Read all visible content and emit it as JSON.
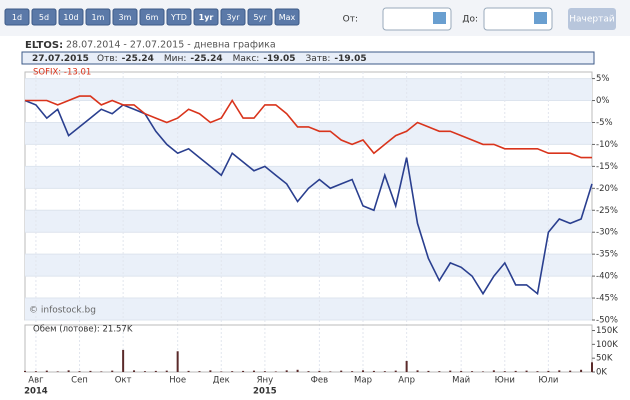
{
  "toolbar": {
    "buttons": [
      "1d",
      "5d",
      "10d",
      "1m",
      "3m",
      "6m",
      "YTD",
      "1yr",
      "3yr",
      "5yr",
      "Max"
    ],
    "active": "1yr",
    "from_label": "От:",
    "to_label": "До:",
    "submit": "Начертай"
  },
  "header": {
    "symbol": "ELTOS:",
    "period": "28.07.2014 - 27.07.2015 - дневна графика",
    "date": "27.07.2015",
    "fields": [
      {
        "label": "Отв:",
        "value": "-25.24"
      },
      {
        "label": "Мин:",
        "value": "-25.24"
      },
      {
        "label": "Макс:",
        "value": "-19.05"
      },
      {
        "label": "Затв:",
        "value": "-19.05"
      }
    ]
  },
  "chart_data": {
    "type": "line",
    "watermark": "© infostock.bg",
    "categories": [
      null,
      "Авг",
      null,
      null,
      null,
      "Сеп",
      null,
      null,
      null,
      "Окт",
      null,
      null,
      null,
      null,
      "Ное",
      null,
      null,
      null,
      "Дек",
      null,
      null,
      null,
      "Яну",
      null,
      null,
      null,
      null,
      "Фев",
      null,
      null,
      null,
      "Мар",
      null,
      null,
      null,
      "Апр",
      null,
      null,
      null,
      null,
      "Май",
      null,
      null,
      null,
      "Юни",
      null,
      null,
      null,
      "Юли",
      null,
      null,
      null,
      null
    ],
    "x_years": [
      null,
      "2014",
      null,
      null,
      null,
      null,
      null,
      null,
      null,
      null,
      null,
      null,
      null,
      null,
      null,
      null,
      null,
      null,
      null,
      null,
      null,
      null,
      "2015",
      null,
      null,
      null,
      null,
      null,
      null,
      null,
      null,
      null,
      null,
      null,
      null,
      null,
      null,
      null,
      null,
      null,
      null,
      null,
      null,
      null,
      null,
      null,
      null,
      null,
      null,
      null,
      null,
      null,
      null
    ],
    "series": [
      {
        "color": "#2a3f8f",
        "values": [
          0,
          -1,
          -4,
          -2,
          -8,
          -6,
          -4,
          -2,
          -3,
          -1,
          -2,
          -3,
          -7,
          -10,
          -12,
          -11,
          -13,
          -15,
          -17,
          -12,
          -14,
          -16,
          -15,
          -17,
          -19,
          -23,
          -20,
          -18,
          -20,
          -19,
          -18,
          -24,
          -25,
          -17,
          -24,
          -13,
          -28,
          -36,
          -41,
          -37,
          -38,
          -40,
          -44,
          -40,
          -37,
          -42,
          -42,
          -44,
          -30,
          -27,
          -28,
          -27,
          -19
        ]
      },
      {
        "name": "SOFIX: -13.01",
        "color": "#d9341c",
        "values": [
          0,
          0,
          0,
          -1,
          0,
          1,
          1,
          -1,
          0,
          -1,
          -1,
          -3,
          -4,
          -5,
          -4,
          -2,
          -3,
          -5,
          -4,
          0,
          -4,
          -4,
          -1,
          -1,
          -3,
          -6,
          -6,
          -7,
          -7,
          -9,
          -10,
          -9,
          -12,
          -10,
          -8,
          -7,
          -5,
          -6,
          -7,
          -7,
          -8,
          -9,
          -10,
          -10,
          -11,
          -11,
          -11,
          -11,
          -12,
          -12,
          -12,
          -13,
          -13
        ]
      }
    ],
    "ylim": [
      -50,
      6.5
    ],
    "yticks": [
      {
        "value": 5,
        "label": "5%"
      },
      {
        "value": 0,
        "label": "0%"
      },
      {
        "value": -5,
        "label": "-5%"
      },
      {
        "value": -10,
        "label": "-10%"
      },
      {
        "value": -15,
        "label": "-15%"
      },
      {
        "value": -20,
        "label": "-20%"
      },
      {
        "value": -25,
        "label": "-25%"
      },
      {
        "value": -30,
        "label": "-30%"
      },
      {
        "value": -35,
        "label": "-35%"
      },
      {
        "value": -40,
        "label": "-40%"
      },
      {
        "value": -45,
        "label": "-45%"
      },
      {
        "value": -50,
        "label": "-50%"
      }
    ],
    "grid": true,
    "volume": {
      "label": "Обем (лотове): 21.57K",
      "color": "#5a2a2a",
      "values": [
        4000,
        3000,
        5000,
        2000,
        6000,
        3000,
        4000,
        2000,
        5000,
        80000,
        6000,
        3000,
        4000,
        5000,
        75000,
        4000,
        3000,
        6000,
        2000,
        3000,
        4000,
        5000,
        3000,
        2000,
        6000,
        8000,
        3000,
        4000,
        2000,
        5000,
        3000,
        6000,
        4000,
        3000,
        5000,
        40000,
        6000,
        4000,
        3000,
        5000,
        4000,
        3000,
        2000,
        6000,
        3000,
        4000,
        5000,
        3000,
        4000,
        6000,
        5000,
        8000,
        35000
      ],
      "ylim": [
        0,
        170000
      ],
      "yticks": [
        {
          "value": 0,
          "label": "0K"
        },
        {
          "value": 50000,
          "label": "50K"
        },
        {
          "value": 100000,
          "label": "100K"
        },
        {
          "value": 150000,
          "label": "150K"
        }
      ]
    }
  }
}
